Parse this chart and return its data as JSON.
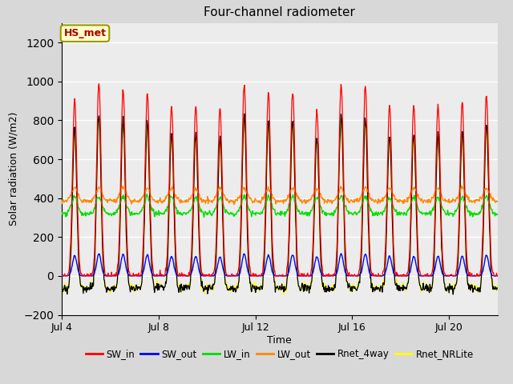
{
  "title": "Four-channel radiometer",
  "xlabel": "Time",
  "ylabel": "Solar radiation (W/m2)",
  "ylim": [
    -200,
    1300
  ],
  "yticks": [
    -200,
    0,
    200,
    400,
    600,
    800,
    1000,
    1200
  ],
  "xtick_labels": [
    "Jul 4",
    "Jul 8",
    "Jul 12",
    "Jul 16",
    "Jul 20"
  ],
  "xtick_positions": [
    0,
    4,
    8,
    12,
    16
  ],
  "annotation_text": "HS_met",
  "annotation_bbox_facecolor": "#ffffcc",
  "annotation_bbox_edgecolor": "#999900",
  "annotation_text_color": "#aa0000",
  "colors": {
    "SW_in": "#ff0000",
    "SW_out": "#0000ff",
    "LW_in": "#00dd00",
    "LW_out": "#ff8800",
    "Rnet_4way": "#000000",
    "Rnet_NRLite": "#ffff00"
  },
  "background_color": "#d8d8d8",
  "plot_background": "#ececec",
  "n_days": 18,
  "figsize": [
    6.4,
    4.8
  ],
  "dpi": 100
}
